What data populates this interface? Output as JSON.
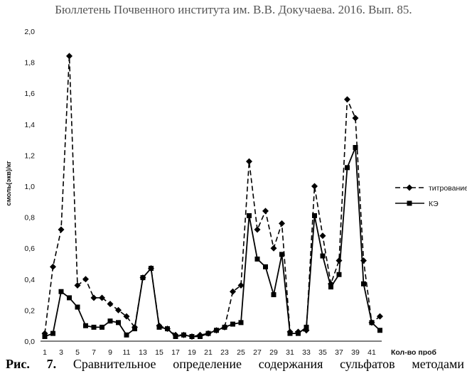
{
  "header": "Бюллетень Почвенного института им. В.В. Докучаева. 2016. Вып. 85.",
  "caption": {
    "label": "Рис. 7.",
    "text": "Сравнительное определение содержания сульфатов методами"
  },
  "chart_data": {
    "type": "line",
    "xlabel": "Кол-во проб",
    "ylabel": "смоль(экв)/кг",
    "x": [
      1,
      2,
      3,
      4,
      5,
      6,
      7,
      8,
      9,
      10,
      11,
      12,
      13,
      14,
      15,
      16,
      17,
      18,
      19,
      20,
      21,
      22,
      23,
      24,
      25,
      26,
      27,
      28,
      29,
      30,
      31,
      32,
      33,
      34,
      35,
      36,
      37,
      38,
      39,
      40,
      41,
      42
    ],
    "xticks": [
      "1",
      "3",
      "5",
      "7",
      "9",
      "11",
      "13",
      "15",
      "17",
      "19",
      "21",
      "23",
      "25",
      "27",
      "29",
      "31",
      "33",
      "35",
      "37",
      "39",
      "41"
    ],
    "ylim": [
      0,
      2.0
    ],
    "yticks": [
      "0,0",
      "0,2",
      "0,4",
      "0,6",
      "0,8",
      "1,0",
      "1,2",
      "1,4",
      "1,6",
      "1,8",
      "2,0"
    ],
    "legend_position": "right",
    "series": [
      {
        "name": "титрование",
        "style": "dashed",
        "marker": "diamond",
        "color": "#000000",
        "values": [
          0.05,
          0.48,
          0.72,
          1.84,
          0.36,
          0.4,
          0.28,
          0.28,
          0.24,
          0.2,
          0.16,
          0.09,
          0.41,
          0.47,
          0.1,
          0.08,
          0.04,
          0.04,
          0.03,
          0.04,
          0.05,
          0.07,
          0.09,
          0.32,
          0.36,
          1.16,
          0.72,
          0.84,
          0.6,
          0.76,
          0.06,
          0.06,
          0.07,
          1.0,
          0.68,
          0.37,
          0.52,
          1.56,
          1.44,
          0.52,
          0.12,
          0.16
        ]
      },
      {
        "name": "КЭ",
        "style": "solid",
        "marker": "square",
        "color": "#000000",
        "values": [
          0.03,
          0.05,
          0.32,
          0.28,
          0.22,
          0.1,
          0.09,
          0.09,
          0.13,
          0.12,
          0.04,
          0.08,
          0.41,
          0.47,
          0.09,
          0.08,
          0.03,
          0.04,
          0.03,
          0.03,
          0.05,
          0.07,
          0.09,
          0.11,
          0.12,
          0.81,
          0.53,
          0.48,
          0.3,
          0.56,
          0.05,
          0.05,
          0.09,
          0.81,
          0.55,
          0.35,
          0.43,
          1.12,
          1.25,
          0.37,
          0.12,
          0.07
        ]
      }
    ]
  }
}
